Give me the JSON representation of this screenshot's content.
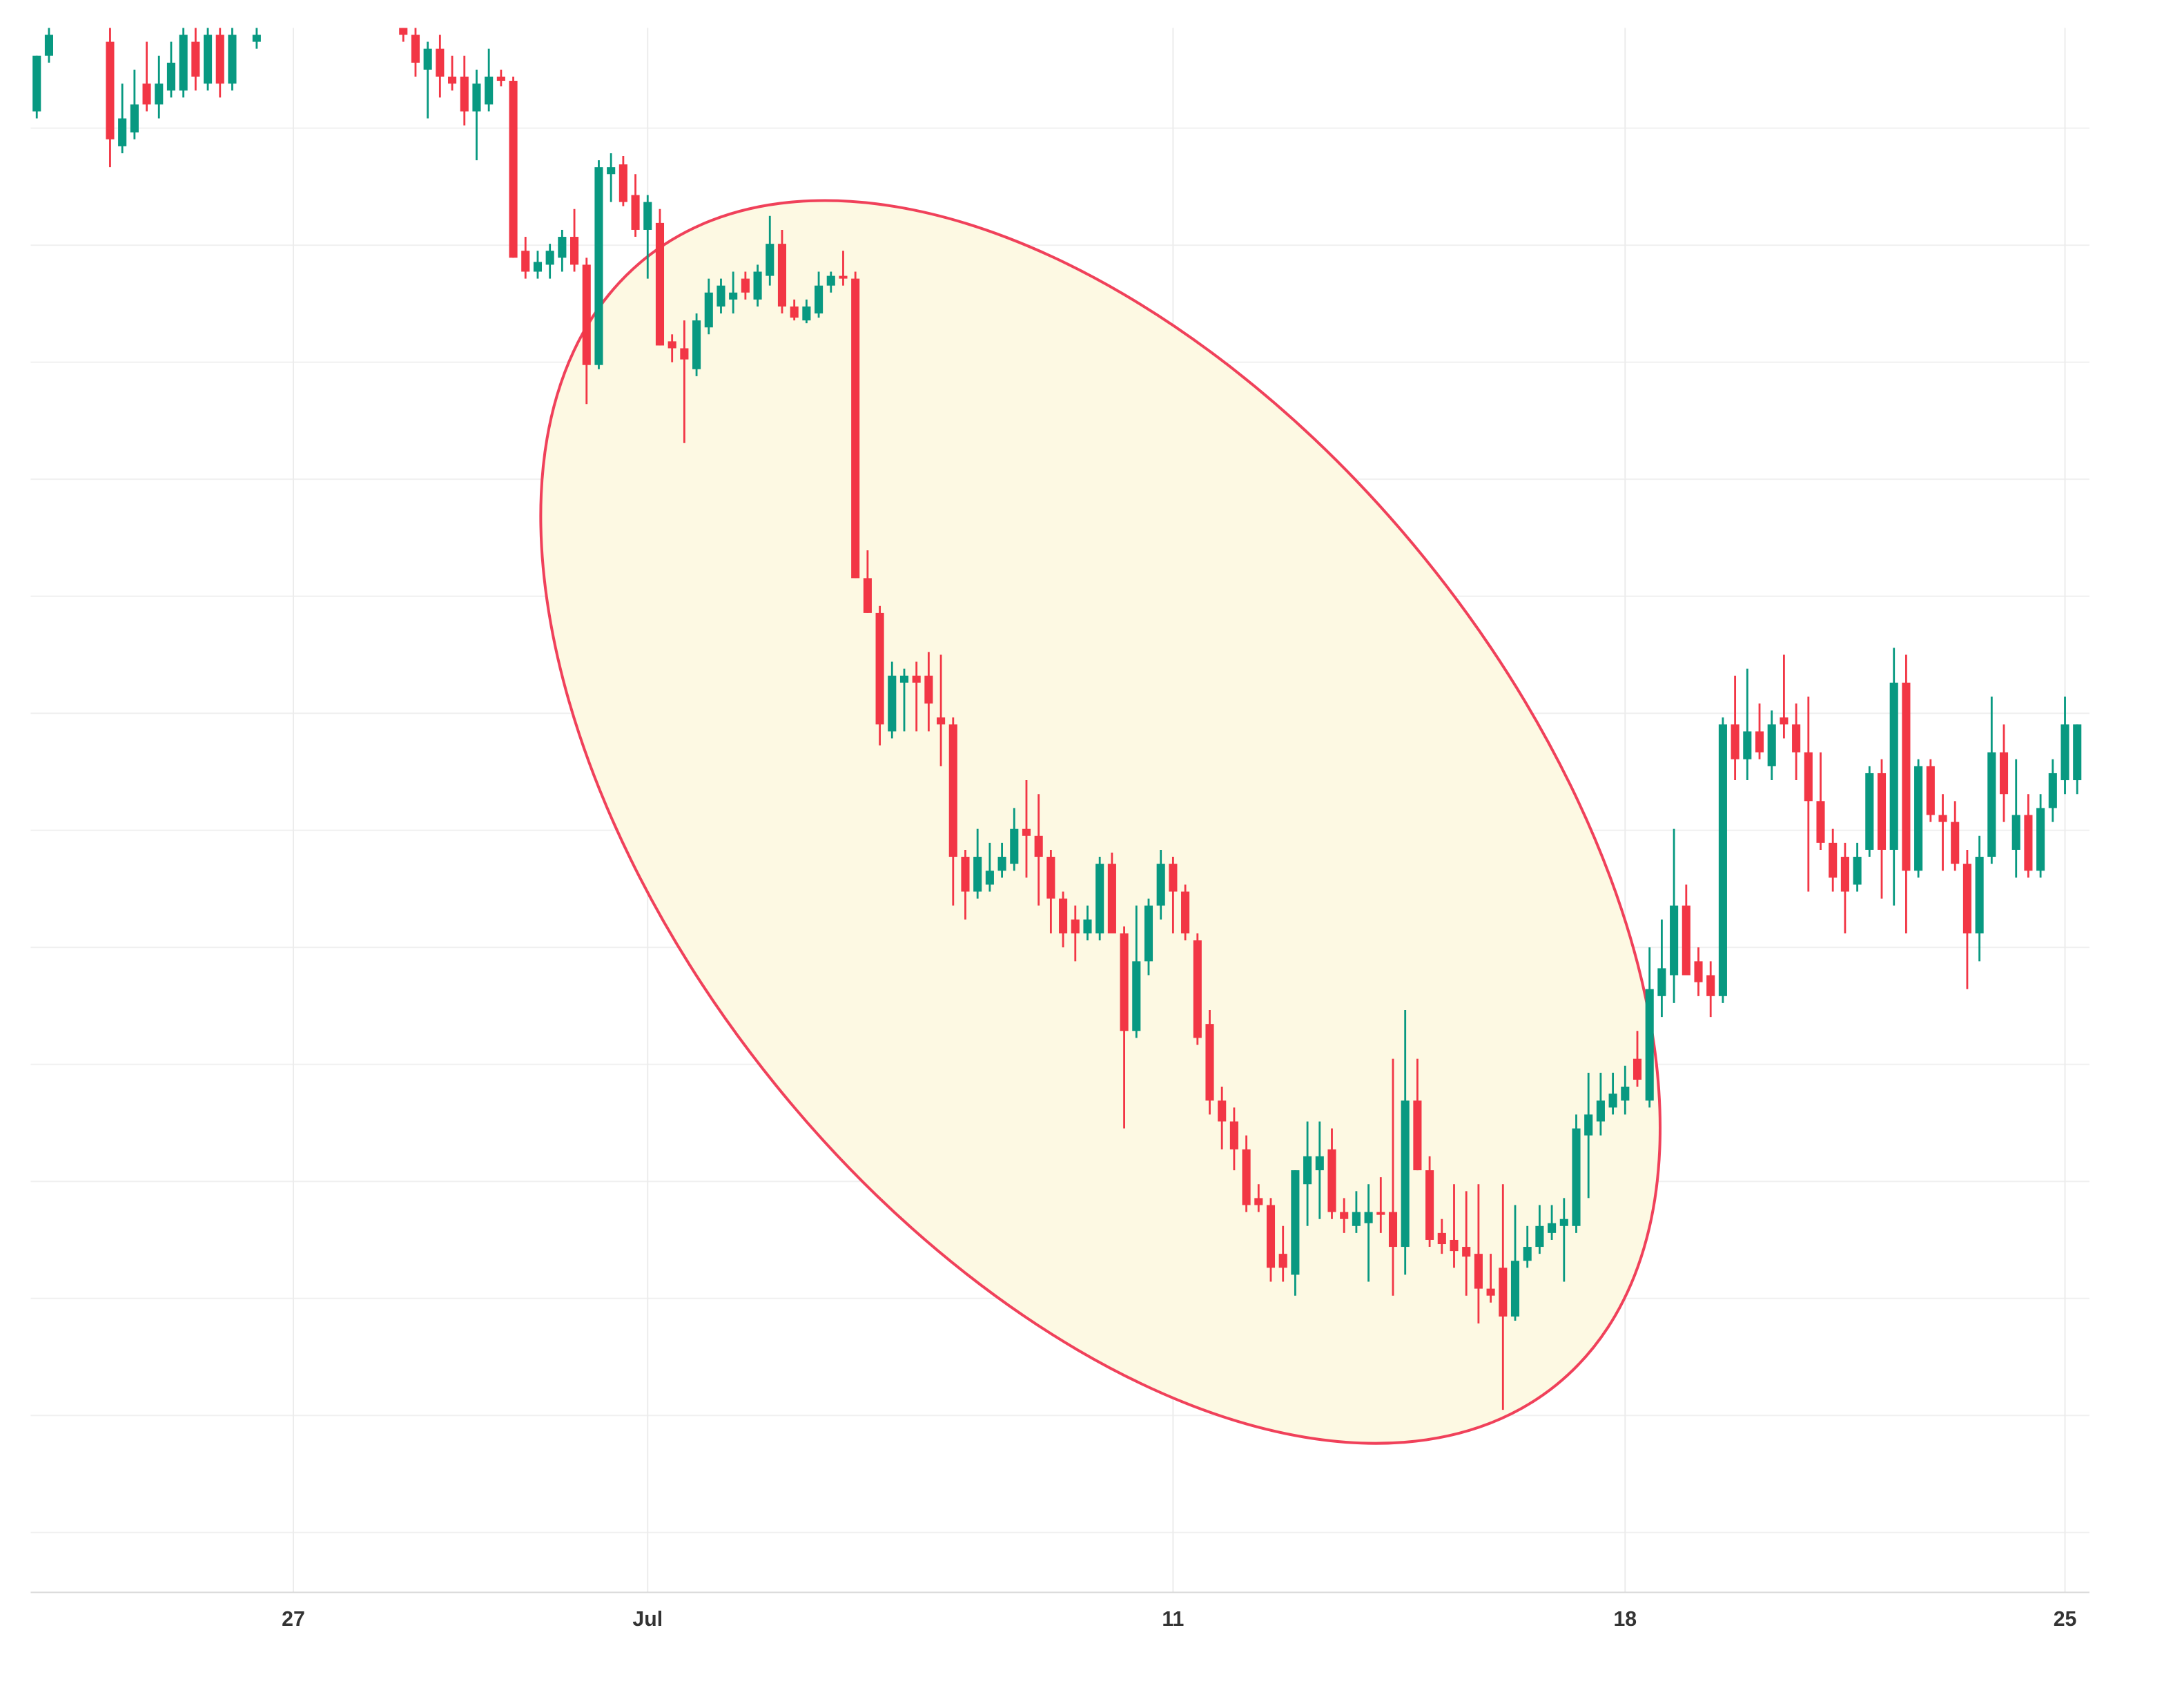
{
  "chart_data": {
    "type": "candlestick",
    "x": [
      0,
      1,
      6,
      7,
      8,
      9,
      10,
      11,
      12,
      13,
      14,
      15,
      16,
      18,
      30,
      31,
      32,
      33,
      34,
      35,
      36,
      37,
      38,
      39,
      40,
      41,
      42,
      43,
      44,
      45,
      46,
      47,
      48,
      49,
      50,
      51,
      52,
      53,
      54,
      55,
      56,
      57,
      58,
      59,
      60,
      61,
      62,
      63,
      64,
      65,
      66,
      67,
      68,
      69,
      70,
      71,
      72,
      73,
      74,
      75,
      76,
      77,
      78,
      79,
      80,
      81,
      82,
      83,
      84,
      85,
      86,
      87,
      88,
      89,
      90,
      91,
      92,
      93,
      94,
      95,
      96,
      97,
      98,
      99,
      100,
      101,
      102,
      103,
      104,
      105,
      106,
      107,
      108,
      109,
      110,
      111,
      112,
      113,
      114,
      115,
      116,
      117,
      118,
      119,
      120,
      121,
      122,
      123,
      124,
      125,
      126,
      127,
      128,
      129,
      130,
      131,
      132,
      133,
      134,
      135,
      136,
      137,
      138,
      139,
      140,
      141,
      142,
      143,
      144,
      145,
      146,
      147,
      148,
      149,
      150,
      151,
      152,
      153,
      154,
      155,
      156,
      157,
      158,
      159,
      160,
      161,
      162,
      163,
      164,
      165,
      166,
      167
    ],
    "open": [
      1060,
      1100,
      1110,
      1035,
      1045,
      1080,
      1065,
      1075,
      1075,
      1110,
      1080,
      1115,
      1080,
      1110,
      1120,
      1115,
      1090,
      1105,
      1085,
      1085,
      1060,
      1065,
      1085,
      1082,
      960,
      945,
      950,
      955,
      970,
      950,
      878,
      1015,
      1022,
      1000,
      975,
      980,
      895,
      890,
      875,
      905,
      920,
      925,
      940,
      925,
      942,
      965,
      920,
      910,
      915,
      935,
      942,
      940,
      725,
      700,
      615,
      650,
      655,
      655,
      625,
      620,
      525,
      500,
      505,
      515,
      520,
      545,
      540,
      525,
      495,
      480,
      470,
      470,
      520,
      470,
      400,
      450,
      490,
      520,
      500,
      465,
      405,
      350,
      335,
      315,
      280,
      275,
      240,
      225,
      290,
      300,
      315,
      270,
      260,
      262,
      270,
      270,
      245,
      350,
      300,
      255,
      250,
      245,
      240,
      215,
      230,
      195,
      235,
      245,
      255,
      260,
      260,
      325,
      335,
      345,
      350,
      380,
      350,
      425,
      440,
      490,
      450,
      440,
      425,
      620,
      595,
      615,
      590,
      625,
      620,
      600,
      565,
      535,
      525,
      505,
      530,
      585,
      530,
      650,
      515,
      590,
      555,
      550,
      520,
      470,
      525,
      600,
      530,
      555,
      515,
      560,
      580,
      580
    ],
    "high": [
      1100,
      1120,
      1120,
      1080,
      1090,
      1110,
      1100,
      1110,
      1120,
      1120,
      1120,
      1120,
      1120,
      1120,
      1120,
      1120,
      1110,
      1115,
      1100,
      1100,
      1090,
      1105,
      1090,
      1085,
      970,
      960,
      965,
      975,
      990,
      955,
      1025,
      1030,
      1028,
      1015,
      1000,
      990,
      900,
      910,
      915,
      940,
      940,
      945,
      945,
      950,
      985,
      975,
      925,
      925,
      945,
      945,
      960,
      945,
      745,
      705,
      665,
      660,
      665,
      672,
      670,
      625,
      530,
      545,
      535,
      535,
      560,
      580,
      570,
      530,
      500,
      490,
      490,
      525,
      528,
      475,
      490,
      495,
      530,
      525,
      505,
      470,
      415,
      360,
      345,
      325,
      290,
      280,
      260,
      300,
      335,
      335,
      330,
      280,
      285,
      290,
      295,
      380,
      415,
      380,
      310,
      265,
      290,
      285,
      290,
      240,
      290,
      275,
      260,
      275,
      275,
      280,
      340,
      370,
      370,
      370,
      375,
      400,
      460,
      480,
      545,
      505,
      460,
      450,
      625,
      655,
      660,
      635,
      630,
      670,
      635,
      640,
      600,
      545,
      535,
      535,
      590,
      595,
      675,
      670,
      595,
      595,
      570,
      565,
      530,
      540,
      640,
      620,
      595,
      570,
      570,
      595,
      640,
      620
    ],
    "low": [
      1055,
      1095,
      1020,
      1030,
      1040,
      1060,
      1055,
      1070,
      1070,
      1075,
      1075,
      1070,
      1075,
      1105,
      1110,
      1085,
      1055,
      1070,
      1075,
      1050,
      1025,
      1060,
      1078,
      955,
      940,
      940,
      940,
      945,
      945,
      850,
      875,
      995,
      992,
      970,
      940,
      892,
      880,
      822,
      870,
      900,
      915,
      915,
      925,
      920,
      935,
      915,
      910,
      908,
      912,
      930,
      935,
      725,
      700,
      605,
      610,
      615,
      615,
      615,
      590,
      490,
      480,
      495,
      500,
      510,
      515,
      510,
      490,
      470,
      460,
      450,
      465,
      465,
      470,
      330,
      395,
      440,
      480,
      470,
      465,
      390,
      340,
      315,
      300,
      270,
      270,
      220,
      220,
      210,
      260,
      265,
      265,
      255,
      255,
      220,
      255,
      210,
      225,
      300,
      245,
      240,
      230,
      210,
      190,
      205,
      128,
      192,
      230,
      240,
      250,
      220,
      255,
      280,
      325,
      340,
      340,
      360,
      345,
      410,
      420,
      440,
      425,
      410,
      420,
      580,
      580,
      595,
      580,
      610,
      580,
      500,
      530,
      500,
      470,
      500,
      525,
      495,
      490,
      470,
      510,
      550,
      515,
      515,
      430,
      450,
      520,
      550,
      510,
      510,
      510,
      550,
      570,
      570
    ],
    "close": [
      1100,
      1115,
      1040,
      1055,
      1065,
      1065,
      1080,
      1095,
      1115,
      1085,
      1115,
      1080,
      1115,
      1115,
      1115,
      1095,
      1105,
      1085,
      1080,
      1060,
      1080,
      1085,
      1082,
      955,
      945,
      952,
      960,
      970,
      950,
      878,
      1020,
      1020,
      995,
      975,
      995,
      892,
      890,
      882,
      910,
      930,
      935,
      930,
      930,
      945,
      965,
      920,
      912,
      920,
      935,
      942,
      940,
      725,
      700,
      620,
      655,
      655,
      650,
      635,
      620,
      525,
      500,
      525,
      515,
      525,
      545,
      540,
      525,
      495,
      470,
      470,
      480,
      520,
      470,
      400,
      450,
      490,
      520,
      500,
      470,
      395,
      350,
      335,
      315,
      275,
      275,
      230,
      230,
      300,
      310,
      310,
      270,
      265,
      270,
      270,
      268,
      245,
      350,
      300,
      250,
      247,
      242,
      238,
      215,
      210,
      195,
      235,
      245,
      260,
      262,
      265,
      330,
      340,
      350,
      355,
      360,
      365,
      430,
      445,
      490,
      440,
      435,
      425,
      620,
      595,
      615,
      600,
      620,
      620,
      600,
      565,
      535,
      510,
      500,
      525,
      585,
      530,
      650,
      515,
      590,
      555,
      550,
      520,
      470,
      525,
      600,
      570,
      555,
      515,
      560,
      585,
      620,
      620
    ],
    "up_color": "#089981",
    "down_color": "#f23645",
    "xlim": [
      -0.5,
      168
    ],
    "ylim": [
      0,
      1120
    ],
    "xticks": [
      {
        "value": 21,
        "label": "27"
      },
      {
        "value": 50,
        "label": "Jul"
      },
      {
        "value": 93,
        "label": "11"
      },
      {
        "value": 130,
        "label": "18"
      },
      {
        "value": 166,
        "label": "25"
      }
    ],
    "grid": true
  }
}
